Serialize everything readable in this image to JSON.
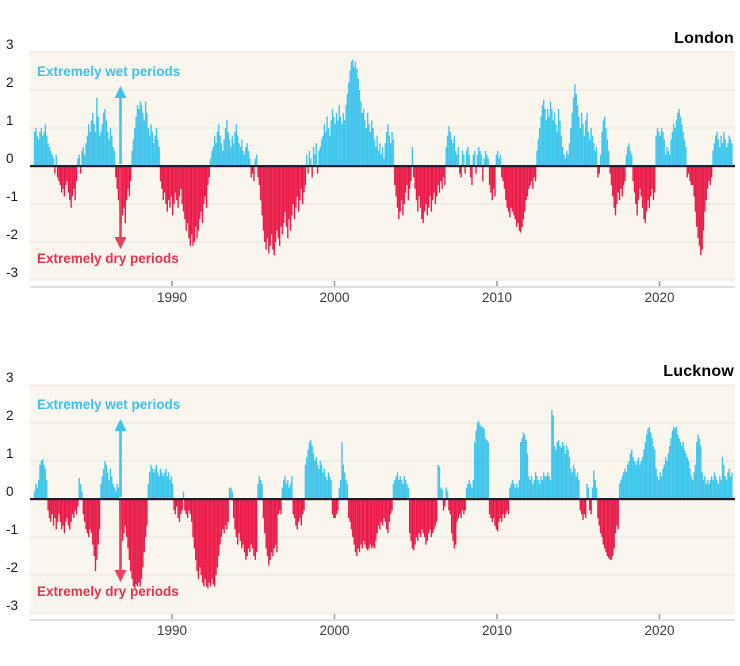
{
  "page": {
    "background": "#ffffff"
  },
  "style": {
    "band_bg": "#faf6ee",
    "gridline": "#e8e3d9",
    "zero_line": "#1d1d30",
    "axis_line": "#cbcbcb",
    "tick_mark": "#9a9a9a",
    "bar_wet": "#3ec5ec",
    "bar_dry": "#ea1a48",
    "arrow_wet": "#3ec5ec",
    "arrow_dry": "#e8415f",
    "wet_text": "#3bc1ea",
    "dry_text": "#e8304f"
  },
  "chart_data": [
    {
      "type": "bar",
      "title": "London",
      "wet_label": "Extremely wet periods",
      "dry_label": "Extremely dry periods",
      "ylim": [
        -3,
        3
      ],
      "y_ticks": [
        "3",
        "2",
        "1",
        "0",
        "-1",
        "-2",
        "-3"
      ],
      "y_tick_values": [
        3,
        2,
        1,
        0,
        -1,
        -2,
        -3
      ],
      "x_ticks": [
        "1990",
        "2000",
        "2010",
        "2020"
      ],
      "x_tick_values": [
        1990,
        2000,
        2010,
        2020
      ],
      "grid": true,
      "legend_position": "none",
      "x_start_decimal_year": 1981.5,
      "points_per_year": 12,
      "values": [
        0.9,
        1.0,
        0.8,
        0.7,
        0.9,
        1.0,
        0.8,
        0.9,
        1.1,
        0.8,
        0.6,
        0.5,
        0.4,
        0.3,
        0.2,
        -0.2,
        0.3,
        -0.3,
        -0.4,
        -0.5,
        -0.7,
        -0.6,
        -0.8,
        -0.5,
        -0.4,
        -0.7,
        -0.9,
        -1.1,
        -0.8,
        -0.6,
        -0.9,
        -0.4,
        0.2,
        0.3,
        -0.2,
        0.4,
        0.5,
        0.3,
        0.6,
        0.8,
        1.1,
        0.9,
        1.2,
        1.4,
        1.1,
        0.9,
        1.8,
        1.3,
        0.8,
        0.9,
        1.1,
        1.4,
        1.5,
        1.2,
        0.9,
        0.7,
        1.0,
        0.8,
        0.5,
        0.4,
        -0.3,
        -0.6,
        -0.9,
        -1.2,
        -1.5,
        -1.3,
        -1.1,
        -1.5,
        -0.9,
        -0.6,
        -0.8,
        -0.4,
        0.4,
        0.7,
        1.0,
        1.3,
        1.6,
        1.5,
        1.7,
        1.6,
        1.4,
        1.2,
        1.7,
        1.4,
        1.0,
        0.8,
        1.1,
        0.9,
        0.6,
        0.8,
        1.0,
        0.7,
        0.5,
        -0.4,
        -0.6,
        -0.9,
        -0.7,
        -1.0,
        -1.2,
        -0.9,
        -1.1,
        -0.8,
        -1.3,
        -1.0,
        -0.7,
        -0.9,
        -1.1,
        -0.8,
        -0.6,
        -1.0,
        -1.2,
        -1.4,
        -1.7,
        -1.5,
        -1.9,
        -2.1,
        -1.8,
        -2.1,
        -2.0,
        -1.6,
        -1.9,
        -1.7,
        -1.4,
        -1.2,
        -1.5,
        -1.0,
        -0.8,
        -1.1,
        -0.5,
        -0.3,
        0.2,
        0.4,
        0.5,
        0.8,
        0.6,
        0.9,
        1.1,
        0.8,
        0.6,
        0.4,
        0.7,
        1.0,
        1.2,
        0.9,
        0.7,
        0.5,
        0.8,
        0.6,
        0.9,
        1.1,
        0.8,
        0.6,
        0.5,
        0.7,
        0.4,
        0.3,
        0.5,
        0.6,
        0.4,
        0.2,
        -0.3,
        -0.2,
        -0.4,
        0.2,
        0.3,
        -0.3,
        -0.5,
        -0.9,
        -1.3,
        -1.7,
        -2.0,
        -2.2,
        -1.9,
        -2.3,
        -2.1,
        -1.8,
        -2.2,
        -2.35,
        -2.0,
        -1.7,
        -1.9,
        -2.1,
        -1.6,
        -1.8,
        -1.5,
        -1.2,
        -1.6,
        -1.9,
        -1.4,
        -1.7,
        -1.3,
        -1.0,
        -1.4,
        -1.1,
        -0.8,
        -1.2,
        -0.9,
        -0.6,
        -1.0,
        -0.7,
        -0.5,
        0.3,
        -0.2,
        0.4,
        0.2,
        -0.3,
        0.5,
        0.3,
        0.6,
        -0.2,
        0.4,
        0.5,
        0.7,
        0.8,
        1.1,
        0.9,
        1.3,
        1.0,
        0.8,
        1.2,
        1.5,
        1.3,
        1.1,
        1.4,
        1.2,
        1.6,
        1.3,
        1.1,
        1.4,
        1.2,
        1.6,
        1.9,
        2.2,
        2.5,
        2.75,
        2.8,
        2.6,
        2.75,
        2.55,
        2.3,
        2.0,
        1.7,
        1.4,
        1.5,
        1.2,
        1.0,
        1.4,
        1.1,
        0.9,
        1.2,
        1.0,
        0.7,
        0.5,
        0.8,
        0.4,
        0.6,
        0.3,
        0.5,
        0.2,
        0.6,
        0.9,
        1.1,
        0.8,
        0.6,
        0.9,
        0.7,
        -0.5,
        -0.8,
        -1.1,
        -1.4,
        -1.2,
        -0.9,
        -1.3,
        -1.0,
        -0.7,
        -0.5,
        -0.9,
        -0.6,
        -0.4,
        0.5,
        -0.3,
        -0.6,
        -0.9,
        -1.2,
        -0.8,
        -1.1,
        -1.4,
        -1.5,
        -1.2,
        -1.0,
        -1.3,
        -1.1,
        -0.8,
        -1.2,
        -0.9,
        -0.7,
        -1.0,
        -0.8,
        -0.5,
        -0.7,
        -0.4,
        -0.6,
        -0.3,
        -0.5,
        0.5,
        0.8,
        1.05,
        0.9,
        0.7,
        0.6,
        0.8,
        0.4,
        0.3,
        0.5,
        -0.2,
        -0.3,
        0.4,
        0.3,
        -0.2,
        0.4,
        0.5,
        0.3,
        -0.3,
        -0.5,
        0.3,
        0.4,
        -0.2,
        0.3,
        0.5,
        0.4,
        0.3,
        -0.4,
        0.2,
        0.4,
        0.3,
        0.2,
        -0.5,
        -0.7,
        -0.9,
        -0.6,
        -0.8,
        0.3,
        0.4,
        0.2,
        0.3,
        -0.3,
        -0.4,
        -0.6,
        -0.9,
        -1.1,
        -1.2,
        -1.35,
        -1.1,
        -1.2,
        -1.3,
        -1.4,
        -1.6,
        -1.5,
        -1.7,
        -1.75,
        -1.6,
        -1.4,
        -1.2,
        -0.9,
        -0.8,
        -0.6,
        -0.5,
        -0.4,
        -0.6,
        -0.3,
        -0.4,
        0.4,
        0.7,
        1.0,
        1.3,
        1.6,
        1.75,
        1.5,
        1.2,
        1.5,
        1.3,
        1.7,
        1.5,
        1.2,
        1.4,
        1.1,
        0.9,
        1.5,
        1.2,
        0.8,
        0.5,
        0.3,
        0.2,
        0.4,
        0.3,
        0.6,
        1.0,
        1.4,
        1.8,
        2.15,
        1.9,
        1.6,
        1.3,
        1.0,
        1.4,
        1.1,
        0.8,
        1.2,
        1.4,
        0.9,
        0.7,
        1.0,
        0.8,
        0.6,
        0.4,
        0.5,
        -0.3,
        -0.2,
        0.3,
        0.9,
        1.2,
        1.3,
        1.0,
        0.7,
        0.4,
        -0.2,
        -0.5,
        -0.8,
        -1.1,
        -1.3,
        -1.0,
        -0.7,
        -0.9,
        -0.6,
        -0.8,
        -0.5,
        -0.4,
        0.3,
        0.5,
        0.6,
        0.4,
        0.3,
        -0.4,
        -0.7,
        -1.0,
        -1.3,
        -0.9,
        -0.6,
        -0.8,
        -1.1,
        -1.4,
        -1.5,
        -1.2,
        -0.9,
        -1.1,
        -0.8,
        -0.6,
        -0.9,
        -0.7,
        0.8,
        1.0,
        0.9,
        0.8,
        1.0,
        0.9,
        0.7,
        0.3,
        0.5,
        0.4,
        0.3,
        0.7,
        0.9,
        1.1,
        1.0,
        1.2,
        1.4,
        1.5,
        1.3,
        1.1,
        0.9,
        0.7,
        0.5,
        -0.3,
        -0.2,
        -0.4,
        -0.5,
        -0.5,
        -0.8,
        -1.2,
        -1.6,
        -1.9,
        -2.1,
        -2.35,
        -2.2,
        -1.7,
        -1.2,
        -0.9,
        -0.6,
        -0.4,
        -0.5,
        -0.3,
        0.4,
        0.6,
        0.8,
        0.9,
        0.7,
        0.5,
        0.8,
        0.6,
        0.9,
        0.7,
        0.5,
        0.6,
        0.8,
        0.7,
        0.6
      ]
    },
    {
      "type": "bar",
      "title": "Lucknow",
      "wet_label": "Extremely wet periods",
      "dry_label": "Extremely dry periods",
      "ylim": [
        -3,
        3
      ],
      "y_ticks": [
        "3",
        "2",
        "1",
        "0",
        "-1",
        "-2",
        "-3"
      ],
      "y_tick_values": [
        3,
        2,
        1,
        0,
        -1,
        -2,
        -3
      ],
      "x_ticks": [
        "1990",
        "2000",
        "2010",
        "2020"
      ],
      "x_tick_values": [
        1990,
        2000,
        2010,
        2020
      ],
      "grid": true,
      "legend_position": "none",
      "x_start_decimal_year": 1981.5,
      "points_per_year": 12,
      "values": [
        0.2,
        0.4,
        0.3,
        0.5,
        0.9,
        1.0,
        1.05,
        0.9,
        0.8,
        0.5,
        -0.3,
        -0.5,
        -0.6,
        -0.4,
        -0.7,
        -0.5,
        -0.8,
        -0.6,
        -0.4,
        -0.6,
        -0.8,
        -0.7,
        -0.9,
        -0.6,
        -0.5,
        -0.7,
        -0.8,
        -0.6,
        -0.4,
        -0.5,
        -0.3,
        -0.4,
        -0.2,
        0.55,
        0.4,
        0.2,
        -0.4,
        -0.6,
        -0.8,
        -0.9,
        -1.0,
        -0.8,
        -0.9,
        -1.2,
        -1.5,
        -1.9,
        -1.6,
        -1.2,
        -0.8,
        0.4,
        0.6,
        0.8,
        1.0,
        0.9,
        0.7,
        0.5,
        0.8,
        0.6,
        0.4,
        0.3,
        0.2,
        0.4,
        0.3,
        -0.5,
        -0.8,
        -1.1,
        -0.9,
        -0.7,
        -1.0,
        -1.3,
        -1.6,
        -1.9,
        -2.1,
        -2.3,
        -2.35,
        -2.25,
        -2.3,
        -2.2,
        -2.3,
        -2.1,
        -1.8,
        -1.4,
        -1.0,
        -0.7,
        0.4,
        0.7,
        0.9,
        0.8,
        0.7,
        0.8,
        0.9,
        0.7,
        0.6,
        0.8,
        0.7,
        0.6,
        0.7,
        0.8,
        0.6,
        0.7,
        0.5,
        0.6,
        0.4,
        -0.3,
        -0.4,
        -0.2,
        -0.5,
        -0.6,
        -0.4,
        -0.3,
        0.2,
        -0.3,
        -0.4,
        -0.5,
        -0.3,
        -0.4,
        -0.6,
        -1.0,
        -1.3,
        -1.6,
        -1.9,
        -2.1,
        -1.8,
        -2.0,
        -2.2,
        -2.3,
        -2.1,
        -2.3,
        -2.35,
        -2.2,
        -2.3,
        -2.1,
        -2.25,
        -2.3,
        -2.0,
        -1.8,
        -1.5,
        -1.2,
        -1.0,
        -0.8,
        -0.9,
        -0.7,
        -0.8,
        -0.6,
        0.3,
        0.3,
        0.2,
        -0.5,
        -0.8,
        -1.0,
        -1.2,
        -0.9,
        -1.1,
        -1.3,
        -1.2,
        -1.4,
        -1.6,
        -1.5,
        -1.3,
        -1.4,
        -1.2,
        -1.3,
        -1.5,
        -1.6,
        -1.4,
        0.4,
        0.6,
        0.5,
        0.4,
        -0.5,
        -0.9,
        -1.3,
        -1.5,
        -1.75,
        -1.6,
        -1.4,
        -1.5,
        -1.3,
        -1.2,
        -1.4,
        -0.4,
        -0.3,
        -0.4,
        0.3,
        0.5,
        0.6,
        0.4,
        0.5,
        0.3,
        0.4,
        0.6,
        -0.4,
        -0.5,
        -0.7,
        -0.8,
        -0.6,
        -0.5,
        -0.7,
        -0.4,
        -0.3,
        0.9,
        1.1,
        1.3,
        1.5,
        1.55,
        1.4,
        1.2,
        1.0,
        1.1,
        0.9,
        0.8,
        1.0,
        0.9,
        0.7,
        0.8,
        0.6,
        0.5,
        0.7,
        0.6,
        0.5,
        -0.4,
        -0.5,
        -0.5,
        -0.4,
        -0.3,
        0.3,
        0.5,
        1.5,
        0.9,
        0.7,
        0.5,
        0.4,
        -0.5,
        -0.6,
        -0.8,
        -1.0,
        -1.2,
        -1.4,
        -1.5,
        -1.3,
        -1.4,
        -1.2,
        -1.3,
        -1.1,
        -1.2,
        -1.3,
        -1.35,
        -1.3,
        -1.2,
        -1.3,
        -1.25,
        -1.3,
        -1.1,
        -0.9,
        -0.7,
        -0.8,
        -0.6,
        -0.7,
        -0.5,
        -0.6,
        -0.8,
        -0.9,
        -0.6,
        -0.4,
        -0.3,
        0.4,
        0.5,
        0.6,
        0.7,
        0.5,
        0.6,
        0.5,
        0.4,
        0.6,
        0.5,
        0.4,
        0.3,
        -0.9,
        -1.1,
        -1.3,
        -1.35,
        -1.2,
        -1.0,
        -1.1,
        -0.9,
        -1.0,
        -0.8,
        -0.9,
        -1.0,
        -1.2,
        -1.1,
        -0.9,
        -0.8,
        -1.0,
        -0.9,
        -0.8,
        -0.7,
        -0.6,
        0.9,
        0.85,
        0.3,
        0.25,
        -0.3,
        -0.2,
        0.3,
        0.2,
        -0.3,
        -0.4,
        -0.9,
        -1.1,
        -1.3,
        -1.2,
        -0.6,
        -0.5,
        -0.4,
        -0.5,
        -0.3,
        -0.4,
        -0.3,
        0.3,
        0.4,
        0.5,
        0.4,
        0.3,
        0.5,
        1.5,
        1.8,
        2.0,
        2.05,
        1.95,
        1.9,
        1.9,
        1.85,
        1.6,
        1.55,
        1.5,
        -0.4,
        -0.5,
        -0.6,
        -0.5,
        -0.7,
        -0.8,
        -0.85,
        -0.6,
        -0.5,
        -0.6,
        -0.4,
        -0.5,
        -0.4,
        -0.3,
        -0.4,
        0.3,
        0.4,
        0.5,
        0.4,
        0.3,
        0.4,
        0.3,
        0.5,
        1.5,
        1.6,
        1.75,
        1.7,
        1.55,
        1.2,
        0.6,
        0.5,
        0.6,
        0.4,
        0.5,
        0.7,
        0.6,
        0.5,
        0.4,
        0.6,
        0.5,
        0.7,
        0.6,
        0.6,
        0.7,
        0.6,
        0.5,
        2.35,
        2.2,
        1.4,
        1.3,
        1.5,
        1.55,
        1.4,
        1.35,
        1.5,
        1.4,
        1.2,
        1.4,
        1.3,
        1.1,
        0.8,
        0.7,
        0.9,
        0.8,
        0.6,
        0.7,
        0.5,
        -0.3,
        -0.4,
        -0.55,
        -0.4,
        -0.5,
        0.4,
        0.3,
        -0.3,
        -0.4,
        0.3,
        0.75,
        0.5,
        0.3,
        -0.5,
        -0.7,
        -0.9,
        -1.0,
        -1.2,
        -1.3,
        -1.4,
        -1.5,
        -1.55,
        -1.6,
        -1.6,
        -1.5,
        -1.3,
        -0.9,
        -0.7,
        -0.8,
        0.4,
        0.5,
        0.6,
        0.7,
        0.8,
        0.7,
        0.9,
        1.0,
        1.2,
        1.3,
        1.1,
        1.0,
        0.9,
        1.0,
        1.1,
        0.9,
        1.0,
        1.1,
        1.3,
        1.5,
        1.7,
        1.85,
        1.9,
        1.75,
        1.6,
        1.4,
        1.3,
        0.8,
        0.6,
        0.5,
        0.7,
        0.6,
        0.8,
        0.9,
        1.1,
        1.0,
        1.2,
        1.4,
        1.6,
        1.8,
        1.9,
        1.85,
        1.9,
        1.7,
        1.6,
        1.5,
        1.4,
        1.5,
        1.3,
        1.2,
        1.1,
        1.0,
        0.8,
        0.6,
        0.5,
        0.7,
        0.9,
        1.5,
        1.7,
        1.6,
        1.4,
        0.7,
        0.5,
        0.6,
        0.4,
        0.5,
        0.4,
        0.5,
        0.6,
        0.5,
        0.7,
        0.6,
        0.5,
        0.4,
        0.6,
        0.5,
        1.1,
        0.9,
        0.6,
        0.5,
        0.7,
        0.8,
        0.6,
        0.7
      ]
    }
  ]
}
